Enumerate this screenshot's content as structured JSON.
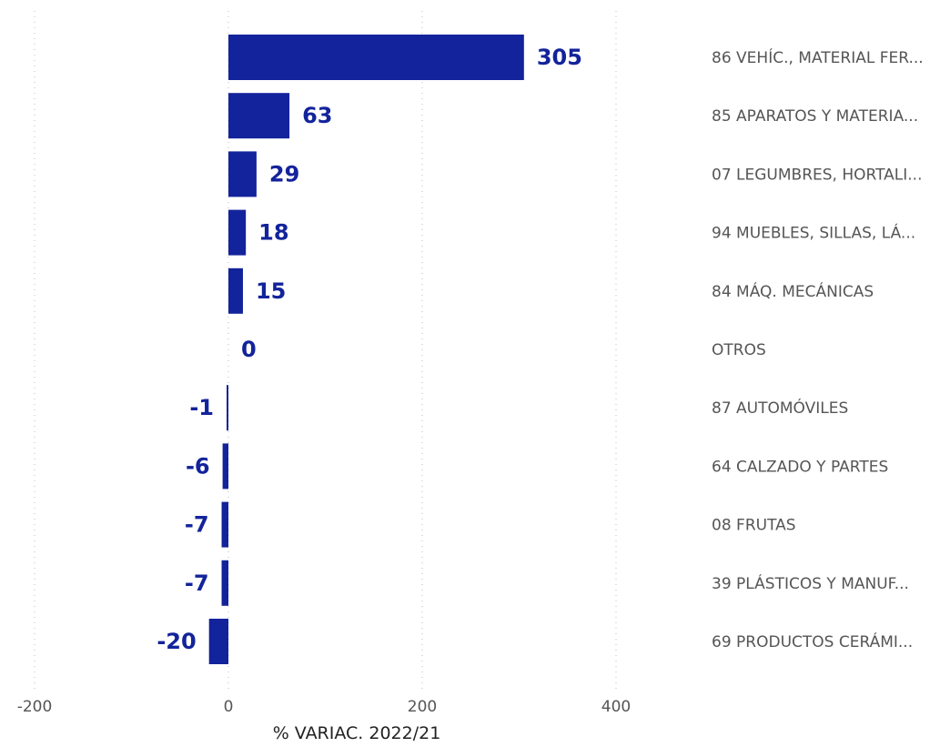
{
  "chart_data": {
    "type": "bar",
    "orientation": "horizontal",
    "categories": [
      "86 VEHÍC., MATERIAL FER...",
      "85 APARATOS Y MATERIA...",
      "07 LEGUMBRES, HORTALI...",
      "94 MUEBLES, SILLAS, LÁ...",
      "84 MÁQ. MECÁNICAS",
      "OTROS",
      "87 AUTOMÓVILES",
      "64 CALZADO Y PARTES",
      "08 FRUTAS",
      "39 PLÁSTICOS Y MANUF...",
      "69 PRODUCTOS CERÁMI..."
    ],
    "values": [
      305,
      63,
      29,
      18,
      15,
      0,
      -1,
      -6,
      -7,
      -7,
      -20
    ],
    "value_labels": [
      "305",
      "63",
      "29",
      "18",
      "15",
      "0",
      "-1",
      "-6",
      "-7",
      "-7",
      "-20"
    ],
    "title": "",
    "xlabel": "% VARIAC. 2022/21",
    "ylabel": "",
    "xlim": [
      -200,
      400
    ],
    "xticks": [
      -200,
      0,
      200,
      400
    ],
    "xtick_labels": [
      "-200",
      "0",
      "200",
      "400"
    ],
    "grid": "vertical-dotted",
    "legend": "none",
    "colors": {
      "bar": "#13239b",
      "value_label": "#13239b"
    }
  }
}
